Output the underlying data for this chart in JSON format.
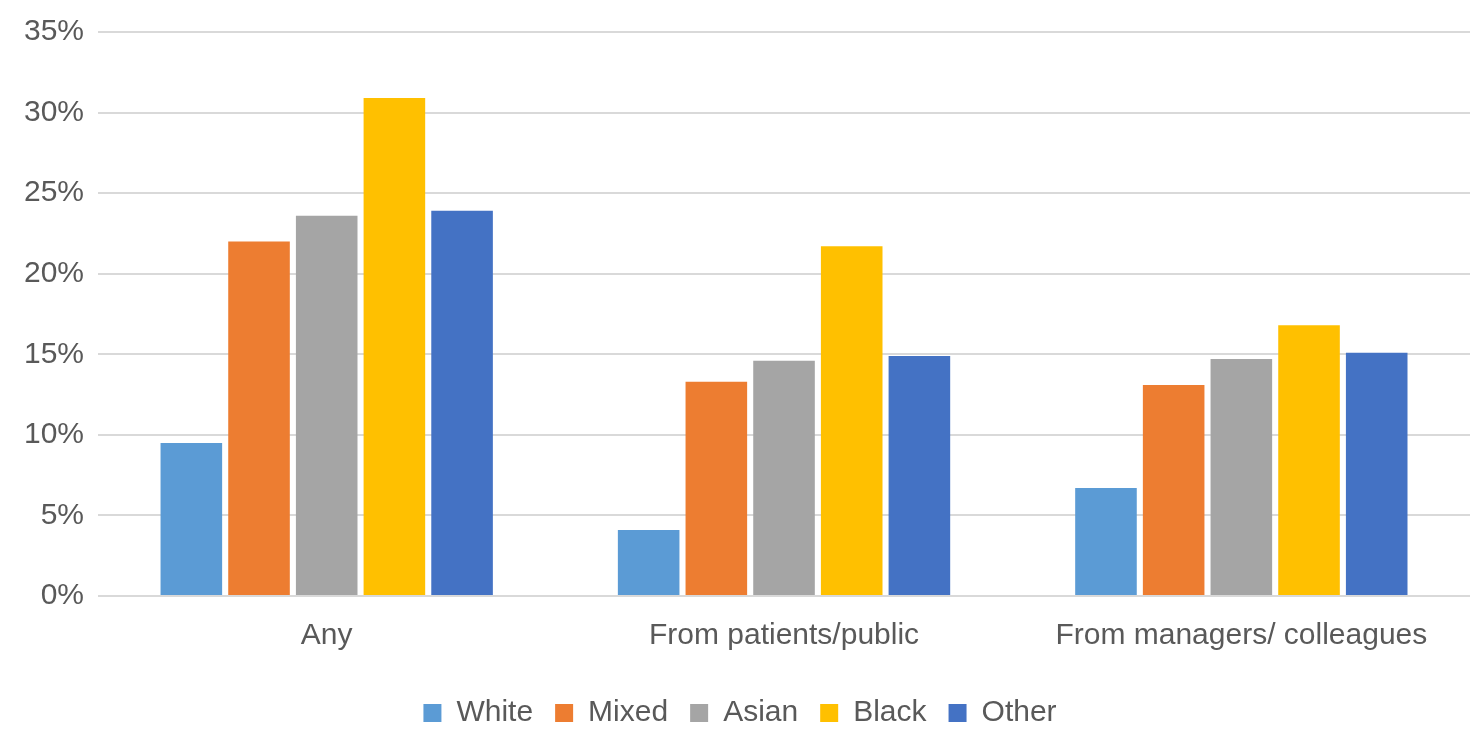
{
  "chart_data": {
    "type": "bar",
    "categories": [
      "Any",
      "From patients/public",
      "From managers/ colleagues"
    ],
    "series": [
      {
        "name": "White",
        "color": "#5b9bd5",
        "values": [
          9.5,
          4.1,
          6.7
        ]
      },
      {
        "name": "Mixed",
        "color": "#ed7d31",
        "values": [
          22.0,
          13.3,
          13.1
        ]
      },
      {
        "name": "Asian",
        "color": "#a5a5a5",
        "values": [
          23.6,
          14.6,
          14.7
        ]
      },
      {
        "name": "Black",
        "color": "#ffc000",
        "values": [
          30.9,
          21.7,
          16.8
        ]
      },
      {
        "name": "Other",
        "color": "#4472c4",
        "values": [
          23.9,
          14.9,
          15.1
        ]
      }
    ],
    "ylim": [
      0,
      35
    ],
    "yticks": [
      {
        "value": 0,
        "label": "0%"
      },
      {
        "value": 5,
        "label": "5%"
      },
      {
        "value": 10,
        "label": "10%"
      },
      {
        "value": 15,
        "label": "15%"
      },
      {
        "value": 20,
        "label": "20%"
      },
      {
        "value": 25,
        "label": "25%"
      },
      {
        "value": 30,
        "label": "30%"
      },
      {
        "value": 35,
        "label": "35%"
      }
    ],
    "grid": "y",
    "legend": "bottom"
  }
}
